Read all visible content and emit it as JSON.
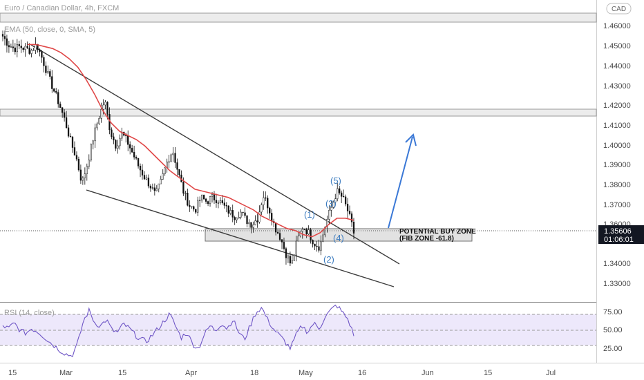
{
  "header": {
    "title": "Euro / Canadian Dollar, 4h, FXCM",
    "indicator": "EMA (50, close, 0, SMA, 5)",
    "rsi_label": "RSI (14, close)",
    "currency": "CAD"
  },
  "current_price": {
    "value": "1.35606",
    "countdown": "01:06:01",
    "level": 1.35606
  },
  "annotations": {
    "zone_line1": "POTENTIAL BUY ZONE",
    "zone_line2": "(FIB ZONE -61.8)",
    "waves": [
      "(1)",
      "(2)",
      "(3)",
      "(4)",
      "(5)"
    ]
  },
  "chart_data": [
    {
      "type": "candlestick",
      "title": "Euro / Canadian Dollar, 4h, FXCM",
      "ylim": [
        1.3225,
        1.4685
      ],
      "x_ticks": [
        "15",
        "Mar",
        "15",
        "Apr",
        "18",
        "May",
        "16",
        "Jun",
        "15",
        "Jul"
      ],
      "y_ticks": [
        "1.46000",
        "1.45000",
        "1.44000",
        "1.43000",
        "1.42000",
        "1.41000",
        "1.40000",
        "1.39000",
        "1.38000",
        "1.37000",
        "1.36000",
        "1.34000",
        "1.33000"
      ],
      "price_path_close": [
        1.451,
        1.447,
        1.445,
        1.446,
        1.445,
        1.444,
        1.447,
        1.44,
        1.432,
        1.425,
        1.418,
        1.41,
        1.4,
        1.392,
        1.38,
        1.39,
        1.402,
        1.412,
        1.42,
        1.405,
        1.398,
        1.404,
        1.4,
        1.394,
        1.388,
        1.383,
        1.379,
        1.374,
        1.381,
        1.39,
        1.396,
        1.385,
        1.375,
        1.369,
        1.367,
        1.373,
        1.371,
        1.373,
        1.372,
        1.369,
        1.366,
        1.364,
        1.366,
        1.362,
        1.36,
        1.363,
        1.374,
        1.368,
        1.359,
        1.354,
        1.346,
        1.34,
        1.352,
        1.359,
        1.356,
        1.351,
        1.349,
        1.36,
        1.368,
        1.376,
        1.373,
        1.366,
        1.356
      ],
      "ema_50": [
        1.447,
        1.447,
        1.446,
        1.445,
        1.443,
        1.44,
        1.436,
        1.43,
        1.423,
        1.415,
        1.409,
        1.405,
        1.403,
        1.401,
        1.398,
        1.394,
        1.39,
        1.386,
        1.383,
        1.38,
        1.377,
        1.376,
        1.375,
        1.374,
        1.373,
        1.371,
        1.369,
        1.367,
        1.364,
        1.362,
        1.36,
        1.358,
        1.357,
        1.355,
        1.354,
        1.356,
        1.36,
        1.363,
        1.363,
        1.362
      ],
      "resistance_zones": [
        [
          1.4635,
          1.4675
        ],
        [
          1.4155,
          1.4195
        ]
      ],
      "buy_zone": [
        1.3525,
        1.358
      ],
      "wedge_upper": {
        "start": [
          "Feb 26",
          1.4505
        ],
        "end": [
          "May 14",
          1.3395
        ]
      },
      "wedge_lower": {
        "start": [
          "Mar 7",
          1.377
        ],
        "end": [
          "May 23",
          1.3285
        ]
      },
      "projection_arrow": {
        "from": 1.3565,
        "to": 1.4045
      }
    },
    {
      "type": "line",
      "title": "RSI (14, close)",
      "ylim": [
        16,
        79
      ],
      "y_ticks": [
        "75.00",
        "50.00",
        "25.00"
      ],
      "levels": [
        70,
        50,
        30
      ],
      "values": [
        55,
        52,
        58,
        50,
        47,
        52,
        49,
        44,
        38,
        33,
        28,
        24,
        22,
        35,
        60,
        72,
        58,
        55,
        62,
        50,
        48,
        57,
        52,
        45,
        40,
        38,
        45,
        52,
        60,
        68,
        55,
        42,
        48,
        35,
        30,
        45,
        55,
        50,
        58,
        52,
        62,
        48,
        40,
        55,
        70,
        75,
        62,
        52,
        45,
        38,
        30,
        45,
        55,
        48,
        58,
        52,
        65,
        72,
        78,
        70,
        62,
        45
      ]
    }
  ]
}
